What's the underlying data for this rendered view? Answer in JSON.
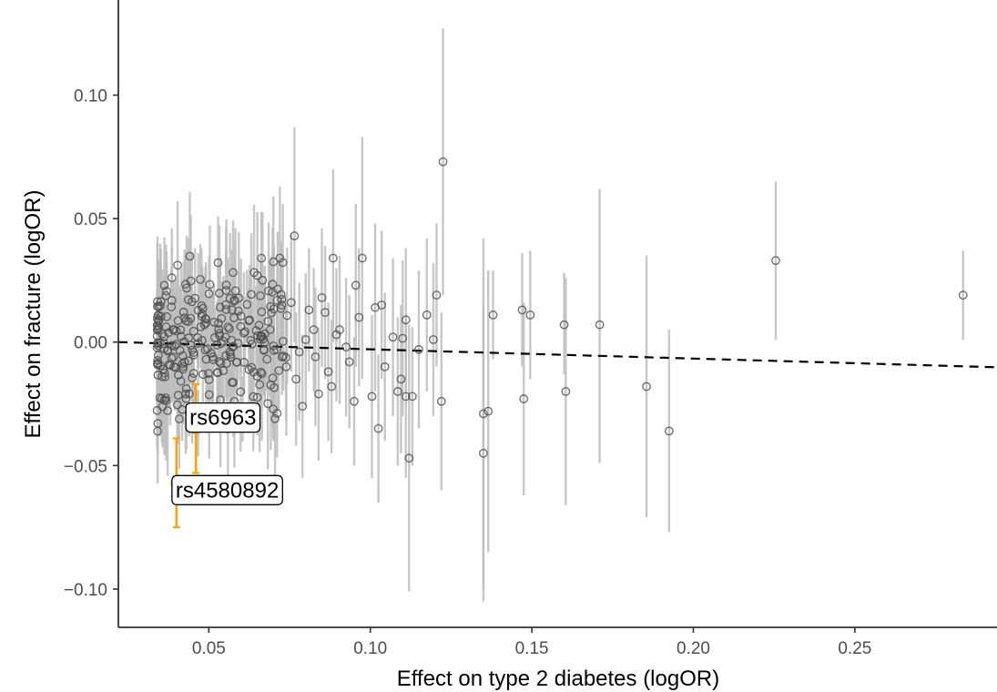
{
  "chart_data": {
    "type": "scatter",
    "title": "",
    "xlabel": "Effect on type 2 diabetes (logOR)",
    "ylabel": "Effect on fracture (logOR)",
    "xlim": [
      0.022,
      0.294
    ],
    "ylim": [
      -0.1155,
      0.1385
    ],
    "x_ticks": [
      0.05,
      0.1,
      0.15,
      0.2,
      0.25
    ],
    "x_tick_labels": [
      "0.05",
      "0.10",
      "0.15",
      "0.20",
      "0.25"
    ],
    "y_ticks": [
      -0.1,
      -0.05,
      0.0,
      0.05,
      0.1
    ],
    "y_tick_labels": [
      "−0.10",
      "−0.05",
      "0.00",
      "0.05",
      "0.10"
    ],
    "grid": false,
    "legend": "none",
    "regression_line": {
      "style": "dashed",
      "x": [
        0.022,
        0.294
      ],
      "y": [
        0.0,
        -0.0102
      ],
      "color": "#000000"
    },
    "colors": {
      "points": "#4d4d4d",
      "errorbars": "#bdbdbd",
      "highlight": "#f5a311"
    },
    "highlighted": [
      {
        "label": "rs6963",
        "x": 0.046,
        "y": -0.035,
        "ymin": -0.053,
        "ymax": -0.017
      },
      {
        "label": "rs4580892",
        "x": 0.04,
        "y": -0.057,
        "ymin": -0.075,
        "ymax": -0.039
      }
    ],
    "points_spread": [
      {
        "x": 0.0885,
        "y": 0.034,
        "ymin": 0.0,
        "ymax": 0.07
      },
      {
        "x": 0.0975,
        "y": 0.034,
        "ymin": -0.015,
        "ymax": 0.083
      },
      {
        "x": 0.0765,
        "y": 0.043,
        "ymin": 0.0,
        "ymax": 0.087
      },
      {
        "x": 0.0955,
        "y": 0.023,
        "ymin": -0.01,
        "ymax": 0.056
      },
      {
        "x": 0.1015,
        "y": 0.014,
        "ymin": -0.02,
        "ymax": 0.048
      },
      {
        "x": 0.1035,
        "y": 0.015,
        "ymin": -0.015,
        "ymax": 0.045
      },
      {
        "x": 0.1005,
        "y": -0.022,
        "ymin": -0.055,
        "ymax": 0.011
      },
      {
        "x": 0.1025,
        "y": -0.035,
        "ymin": -0.065,
        "ymax": -0.005
      },
      {
        "x": 0.1045,
        "y": -0.01,
        "ymin": -0.04,
        "ymax": 0.02
      },
      {
        "x": 0.107,
        "y": 0.002,
        "ymin": -0.03,
        "ymax": 0.034
      },
      {
        "x": 0.1085,
        "y": -0.02,
        "ymin": -0.05,
        "ymax": 0.01
      },
      {
        "x": 0.1095,
        "y": -0.015,
        "ymin": -0.045,
        "ymax": 0.015
      },
      {
        "x": 0.11,
        "y": 0.0015,
        "ymin": -0.03,
        "ymax": 0.033
      },
      {
        "x": 0.111,
        "y": -0.022,
        "ymin": -0.055,
        "ymax": 0.011
      },
      {
        "x": 0.112,
        "y": -0.047,
        "ymin": -0.101,
        "ymax": 0.007
      },
      {
        "x": 0.115,
        "y": -0.003,
        "ymin": -0.035,
        "ymax": 0.029
      },
      {
        "x": 0.1175,
        "y": 0.011,
        "ymin": -0.02,
        "ymax": 0.042
      },
      {
        "x": 0.1195,
        "y": 0.001,
        "ymin": -0.03,
        "ymax": 0.032
      },
      {
        "x": 0.1205,
        "y": 0.019,
        "ymin": -0.01,
        "ymax": 0.048
      },
      {
        "x": 0.122,
        "y": -0.024,
        "ymin": -0.06,
        "ymax": 0.012
      },
      {
        "x": 0.1225,
        "y": 0.073,
        "ymin": 0.019,
        "ymax": 0.127
      },
      {
        "x": 0.111,
        "y": 0.009,
        "ymin": -0.02,
        "ymax": 0.038
      },
      {
        "x": 0.135,
        "y": -0.029,
        "ymin": -0.1,
        "ymax": 0.042
      },
      {
        "x": 0.135,
        "y": -0.045,
        "ymin": -0.105,
        "ymax": 0.015
      },
      {
        "x": 0.1365,
        "y": -0.028,
        "ymin": -0.085,
        "ymax": 0.029
      },
      {
        "x": 0.138,
        "y": 0.011,
        "ymin": -0.007,
        "ymax": 0.029
      },
      {
        "x": 0.147,
        "y": 0.013,
        "ymin": -0.01,
        "ymax": 0.036
      },
      {
        "x": 0.1475,
        "y": -0.023,
        "ymin": -0.062,
        "ymax": 0.016
      },
      {
        "x": 0.1495,
        "y": 0.011,
        "ymin": -0.015,
        "ymax": 0.037
      },
      {
        "x": 0.16,
        "y": 0.007,
        "ymin": -0.013,
        "ymax": 0.028
      },
      {
        "x": 0.1605,
        "y": -0.02,
        "ymin": -0.066,
        "ymax": 0.026
      },
      {
        "x": 0.171,
        "y": 0.007,
        "ymin": -0.049,
        "ymax": 0.062
      },
      {
        "x": 0.1855,
        "y": -0.018,
        "ymin": -0.071,
        "ymax": 0.035
      },
      {
        "x": 0.1925,
        "y": -0.036,
        "ymin": -0.077,
        "ymax": 0.005
      },
      {
        "x": 0.2255,
        "y": 0.033,
        "ymin": 0.001,
        "ymax": 0.065
      },
      {
        "x": 0.2835,
        "y": 0.019,
        "ymin": 0.001,
        "ymax": 0.037
      },
      {
        "x": 0.095,
        "y": -0.024,
        "ymin": -0.05,
        "ymax": 0.002
      },
      {
        "x": 0.0925,
        "y": -0.002,
        "ymin": -0.03,
        "ymax": 0.026
      },
      {
        "x": 0.0905,
        "y": 0.005,
        "ymin": -0.025,
        "ymax": 0.035
      },
      {
        "x": 0.088,
        "y": -0.018,
        "ymin": -0.045,
        "ymax": 0.009
      },
      {
        "x": 0.086,
        "y": 0.012,
        "ymin": -0.015,
        "ymax": 0.039
      },
      {
        "x": 0.084,
        "y": -0.021,
        "ymin": -0.048,
        "ymax": 0.006
      },
      {
        "x": 0.0825,
        "y": 0.005,
        "ymin": -0.02,
        "ymax": 0.03
      },
      {
        "x": 0.081,
        "y": 0.013,
        "ymin": -0.012,
        "ymax": 0.038
      },
      {
        "x": 0.079,
        "y": -0.026,
        "ymin": -0.055,
        "ymax": 0.003
      },
      {
        "x": 0.078,
        "y": -0.004,
        "ymin": -0.032,
        "ymax": 0.024
      },
      {
        "x": 0.0755,
        "y": 0.016,
        "ymin": -0.012,
        "ymax": 0.044
      },
      {
        "x": 0.074,
        "y": -0.01,
        "ymin": -0.038,
        "ymax": 0.018
      },
      {
        "x": 0.072,
        "y": 0.034,
        "ymin": 0.005,
        "ymax": 0.063
      },
      {
        "x": 0.0705,
        "y": -0.031,
        "ymin": -0.058,
        "ymax": -0.004
      },
      {
        "x": 0.069,
        "y": 0.005,
        "ymin": -0.022,
        "ymax": 0.032
      },
      {
        "x": 0.113,
        "y": -0.022,
        "ymin": -0.05,
        "ymax": 0.006
      },
      {
        "x": 0.0965,
        "y": 0.01,
        "ymin": -0.018,
        "ymax": 0.038
      },
      {
        "x": 0.0935,
        "y": -0.008,
        "ymin": -0.035,
        "ymax": 0.019
      },
      {
        "x": 0.0895,
        "y": 0.003,
        "ymin": -0.024,
        "ymax": 0.03
      },
      {
        "x": 0.087,
        "y": -0.012,
        "ymin": -0.04,
        "ymax": 0.016
      },
      {
        "x": 0.085,
        "y": 0.018,
        "ymin": -0.01,
        "ymax": 0.046
      },
      {
        "x": 0.083,
        "y": -0.006,
        "ymin": -0.034,
        "ymax": 0.022
      },
      {
        "x": 0.08,
        "y": 0.001,
        "ymin": -0.026,
        "ymax": 0.028
      },
      {
        "x": 0.077,
        "y": -0.015,
        "ymin": -0.042,
        "ymax": 0.012
      }
    ],
    "cluster": {
      "description_region": {
        "x": [
          0.034,
          0.075
        ],
        "y": [
          -0.03,
          0.03
        ]
      }
    }
  }
}
